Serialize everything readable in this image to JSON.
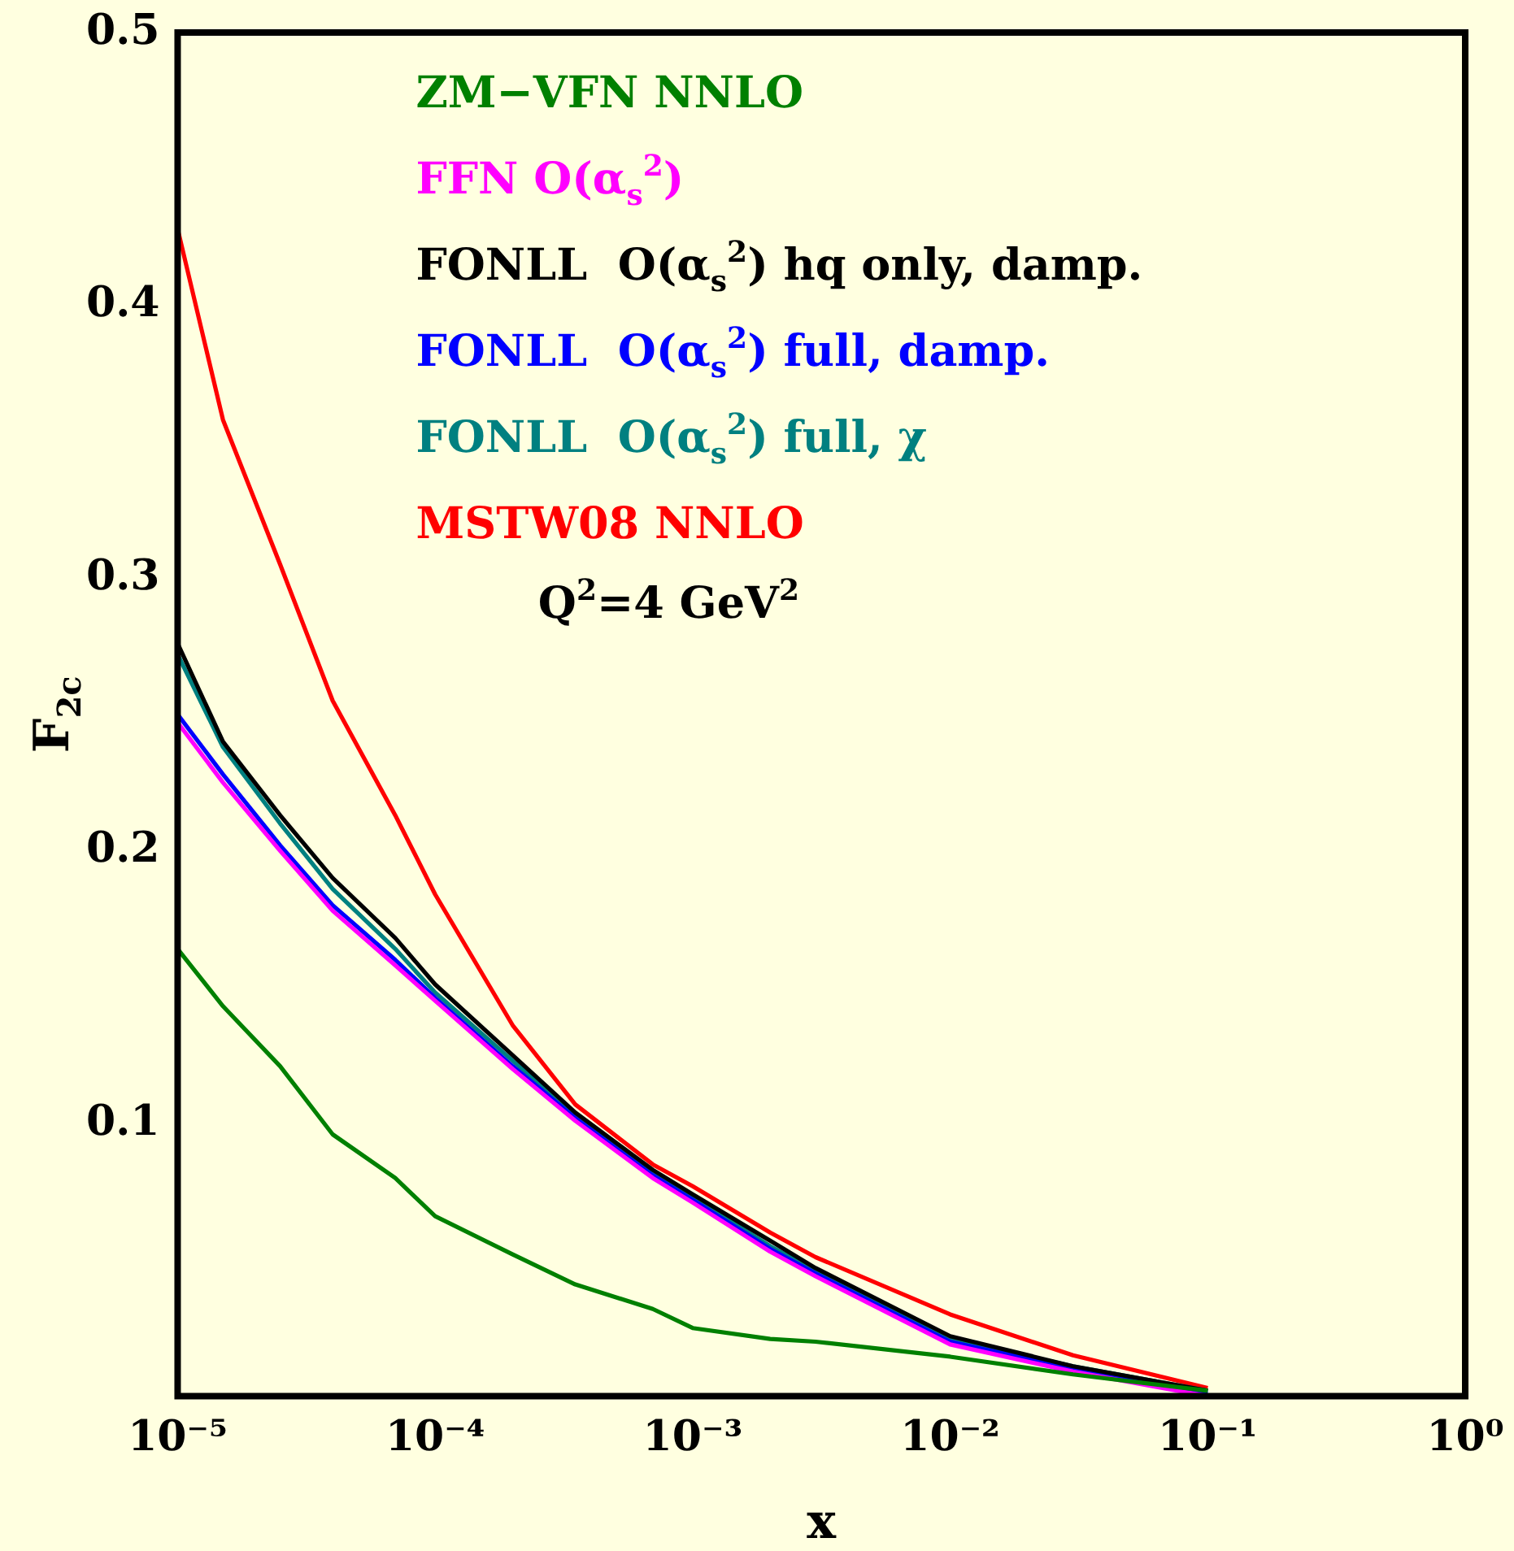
{
  "chart_data": {
    "type": "line",
    "xlabel": "x",
    "ylabel": "F$_{2c}$",
    "log": "x",
    "xlim": [
      1e-05,
      1
    ],
    "ylim": [
      0,
      0.5
    ],
    "xticks": [
      {
        "value": 1e-05,
        "label": "10⁻⁵"
      },
      {
        "value": 0.0001,
        "label": "10⁻⁴"
      },
      {
        "value": 0.001,
        "label": "10⁻³"
      },
      {
        "value": 0.01,
        "label": "10⁻²"
      },
      {
        "value": 0.1,
        "label": "10⁻¹"
      },
      {
        "value": 1,
        "label": "10⁰"
      }
    ],
    "yticks": [
      0.1,
      0.2,
      0.3,
      0.4,
      0.5
    ],
    "grid": false,
    "legend": "top",
    "marker": "none",
    "line_style": "solid",
    "x": [
      1e-05,
      1.5e-05,
      2.5e-05,
      4e-05,
      7e-05,
      0.0001,
      0.0002,
      0.00035,
      0.0007,
      0.001,
      0.002,
      0.003,
      0.01,
      0.03,
      0.1
    ],
    "series": [
      {
        "name": "ZM−VFN NNLO",
        "color": "#008000",
        "values": [
          0.164,
          0.143,
          0.121,
          0.096,
          0.08,
          0.066,
          0.052,
          0.041,
          0.032,
          0.025,
          0.021,
          0.02,
          0.0145,
          0.008,
          0.002
        ]
      },
      {
        "name": "FFN O(α$_{s}$$^{2}$)",
        "color": "#ff00ff",
        "values": [
          0.247,
          0.225,
          0.2,
          0.178,
          0.158,
          0.145,
          0.12,
          0.101,
          0.08,
          0.071,
          0.053,
          0.044,
          0.019,
          0.009,
          0.0
        ]
      },
      {
        "name": "FONLL  O(α$_{s}$$^{2}$) hq only, damp.",
        "color": "#000000",
        "values": [
          0.276,
          0.24,
          0.213,
          0.19,
          0.168,
          0.151,
          0.125,
          0.104,
          0.083,
          0.074,
          0.057,
          0.047,
          0.022,
          0.011,
          0.002
        ]
      },
      {
        "name": "FONLL  O(α$_{s}$$^{2}$) full, damp.",
        "color": "#0000ff",
        "values": [
          0.25,
          0.228,
          0.202,
          0.18,
          0.16,
          0.146,
          0.121,
          0.102,
          0.081,
          0.072,
          0.054,
          0.045,
          0.02,
          0.01,
          0.001
        ]
      },
      {
        "name": "FONLL  O(α$_{s}$$^{2}$) full, χ",
        "color": "#008080",
        "values": [
          0.272,
          0.238,
          0.21,
          0.186,
          0.164,
          0.148,
          0.123,
          0.103,
          0.082,
          0.073,
          0.055,
          0.046,
          0.021,
          0.011,
          0.002
        ]
      },
      {
        "name": "MSTW08 NNLO",
        "color": "#ff0000",
        "values": [
          0.428,
          0.358,
          0.305,
          0.255,
          0.213,
          0.184,
          0.136,
          0.107,
          0.085,
          0.077,
          0.06,
          0.051,
          0.03,
          0.015,
          0.003
        ]
      }
    ],
    "annotations": [
      "Q$^{2}$=4 GeV$^{2}$"
    ]
  }
}
